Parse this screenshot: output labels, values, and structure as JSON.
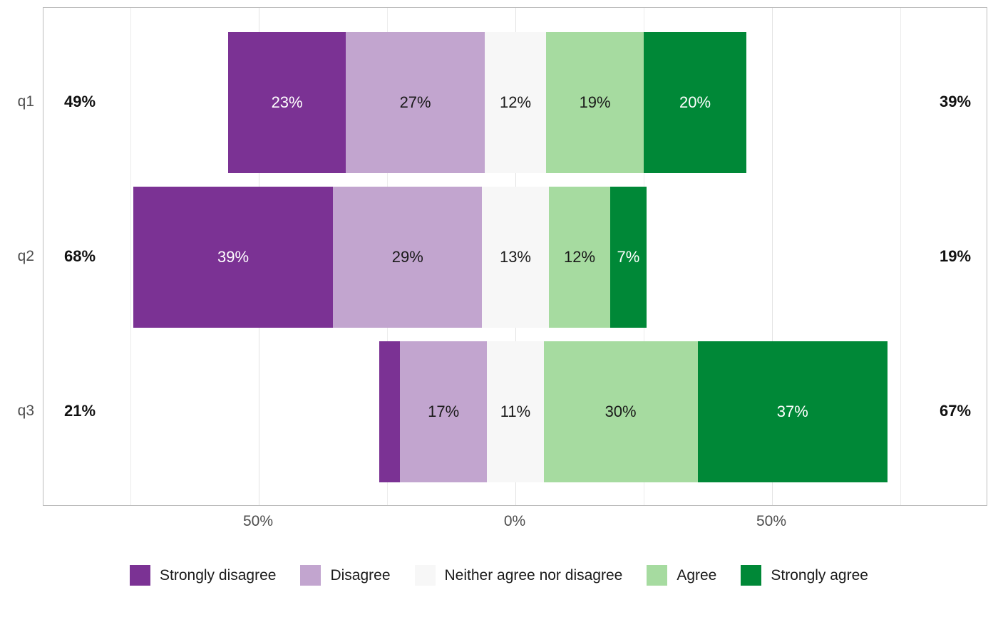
{
  "figure": {
    "background": "#ffffff",
    "panel_border_color": "#bdbdbd",
    "major_grid_color": "#e3e3e3",
    "minor_grid_color": "#ececec",
    "axis_text_color": "#4d4d4d",
    "total_text_color": "#111111",
    "legend_text_color": "#1a1a1a"
  },
  "chart_data": {
    "type": "bar",
    "subtype": "diverging-stacked-likert",
    "title": "",
    "xlabel": "",
    "ylabel": "",
    "categories": [
      "q1",
      "q2",
      "q3"
    ],
    "levels": [
      "Strongly disagree",
      "Disagree",
      "Neither agree nor disagree",
      "Agree",
      "Strongly agree"
    ],
    "colors": [
      "#7b3294",
      "#c2a5cf",
      "#f7f7f7",
      "#a6dba0",
      "#008837"
    ],
    "segment_label_colors": [
      "#ffffff",
      "#1a1a1a",
      "#1a1a1a",
      "#1a1a1a",
      "#ffffff"
    ],
    "series": [
      {
        "category": "q1",
        "values": [
          23,
          27,
          12,
          19,
          20
        ],
        "segment_labels": [
          "23%",
          "27%",
          "12%",
          "19%",
          "20%"
        ],
        "left_total": "49%",
        "right_total": "39%"
      },
      {
        "category": "q2",
        "values": [
          39,
          29,
          13,
          12,
          7
        ],
        "segment_labels": [
          "39%",
          "29%",
          "13%",
          "12%",
          "7%"
        ],
        "left_total": "68%",
        "right_total": "19%"
      },
      {
        "category": "q3",
        "values": [
          4,
          17,
          11,
          30,
          37
        ],
        "segment_labels": [
          "",
          "17%",
          "11%",
          "30%",
          "37%"
        ],
        "left_total": "21%",
        "right_total": "67%"
      }
    ],
    "x_ticks": [
      {
        "value": -50,
        "label": "50%"
      },
      {
        "value": 0,
        "label": "0%"
      },
      {
        "value": 50,
        "label": "50%"
      }
    ],
    "major_gridlines": [
      -50,
      0,
      50
    ],
    "minor_gridlines": [
      -75,
      -25,
      25,
      75
    ],
    "axis_range": [
      -92,
      92
    ],
    "neutral_centered_on_zero": true,
    "grid": true,
    "legend_position": "bottom"
  }
}
